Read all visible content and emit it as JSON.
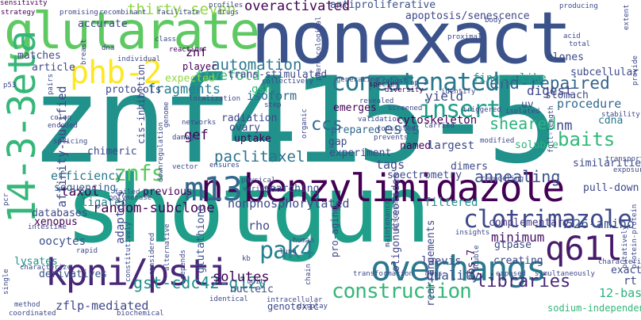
{
  "colors": {
    "background": "#ffffff",
    "palette": [
      "#440154",
      "#443983",
      "#31688e",
      "#21918c",
      "#35b779",
      "#90d743",
      "#fde725"
    ]
  },
  "words": [
    {
      "id": "w01",
      "text": "znf415-5",
      "color": "#21918c"
    },
    {
      "id": "w02",
      "text": "shotgun",
      "color": "#1f9e89"
    },
    {
      "id": "w03",
      "text": "nonexact",
      "color": "#3b528b"
    },
    {
      "id": "w04",
      "text": "glutarate",
      "color": "#5ec962"
    },
    {
      "id": "w05",
      "text": "n-benzylimidazole",
      "color": "#440154"
    },
    {
      "id": "w06",
      "text": "14-3-3eta",
      "color": "#35b779"
    },
    {
      "id": "w07",
      "text": "kpni/psti",
      "color": "#482677"
    },
    {
      "id": "w08",
      "text": "overhangs",
      "color": "#2a788e"
    },
    {
      "id": "w09",
      "text": "m13",
      "color": "#31688e"
    },
    {
      "id": "w10",
      "text": "phb-2",
      "color": "#fde725"
    },
    {
      "id": "w11",
      "text": "concatenated",
      "color": "#2a788e"
    },
    {
      "id": "w12",
      "text": "clotrimazole",
      "color": "#3e4989"
    },
    {
      "id": "w13",
      "text": "q61l",
      "color": "#481a6c"
    },
    {
      "id": "w14",
      "text": "insert",
      "color": "#1f9e89"
    },
    {
      "id": "w15",
      "text": "pak4",
      "color": "#26828e"
    },
    {
      "id": "w16",
      "text": "construction",
      "color": "#35b779"
    },
    {
      "id": "w17",
      "text": "znfs",
      "color": "#5ec962"
    },
    {
      "id": "w18",
      "text": "thirty-seven",
      "color": "#90d743"
    },
    {
      "id": "w19",
      "text": "end-repaired",
      "color": "#33638d"
    },
    {
      "id": "w20",
      "text": "sheared",
      "color": "#2db27d"
    },
    {
      "id": "w21",
      "text": "annealing",
      "color": "#3b528b"
    },
    {
      "id": "w22",
      "text": "overactivated",
      "color": "#440154"
    },
    {
      "id": "w23",
      "text": "automation",
      "color": "#2a788e"
    },
    {
      "id": "w24",
      "text": "random-subclone",
      "color": "#440154"
    },
    {
      "id": "w25",
      "text": "gst-cdc42-g12v",
      "color": "#21918c"
    },
    {
      "id": "w26",
      "text": "libraries",
      "color": "#482878"
    },
    {
      "id": "w27",
      "text": "nonphosphorylated",
      "color": "#3e4989"
    },
    {
      "id": "w28",
      "text": "paclitaxel",
      "color": "#2c728e"
    },
    {
      "id": "w29",
      "text": "baits",
      "color": "#35b779"
    },
    {
      "id": "w30",
      "text": "526-amino",
      "color": "#3b528b"
    },
    {
      "id": "w31",
      "text": "12-base",
      "color": "#2db27d"
    },
    {
      "id": "w32",
      "text": "affinity-purified",
      "color": "#3e4989"
    },
    {
      "id": "w33",
      "text": "antiproliferative",
      "color": "#3b528b"
    },
    {
      "id": "w34",
      "text": "apoptosis/senescence",
      "color": "#404688"
    },
    {
      "id": "w35",
      "text": "fivefold",
      "color": "#35b779"
    },
    {
      "id": "w36",
      "text": "fragments",
      "color": "#287c8e"
    },
    {
      "id": "w37",
      "text": "finger-like",
      "color": "#1f9e89"
    },
    {
      "id": "w38",
      "text": "ccs",
      "color": "#31688e"
    },
    {
      "id": "w39",
      "text": "yield",
      "color": "#3e4989"
    },
    {
      "id": "w40",
      "text": "digest",
      "color": "#404688"
    },
    {
      "id": "w41",
      "text": "efficiency",
      "color": "#2a788e"
    },
    {
      "id": "w42",
      "text": "solutes",
      "color": "#440154"
    },
    {
      "id": "w43",
      "text": "filtered",
      "color": "#21918c"
    },
    {
      "id": "w44",
      "text": "minimum",
      "color": "#471164"
    },
    {
      "id": "w45",
      "text": "complementary",
      "color": "#453882"
    },
    {
      "id": "w46",
      "text": "quality",
      "color": "#3b528b"
    },
    {
      "id": "w47",
      "text": "laevis",
      "color": "#3e4989"
    },
    {
      "id": "w48",
      "text": "cos-7",
      "color": "#471164"
    },
    {
      "id": "w49",
      "text": "rho",
      "color": "#3e4989"
    },
    {
      "id": "w50",
      "text": "taxol",
      "color": "#440154"
    },
    {
      "id": "w51",
      "text": "gef",
      "color": "#440154"
    },
    {
      "id": "w52",
      "text": "ests",
      "color": "#31688e"
    },
    {
      "id": "w53",
      "text": "sequencing",
      "color": "#34618d"
    },
    {
      "id": "w54",
      "text": "ligated",
      "color": "#2a788e"
    },
    {
      "id": "w55",
      "text": "cytoskeleton",
      "color": "#440154"
    },
    {
      "id": "w56",
      "text": "zflp-mediated",
      "color": "#404688"
    },
    {
      "id": "w57",
      "text": "tags",
      "color": "#3e4989"
    },
    {
      "id": "w58",
      "text": "oocytes",
      "color": "#3b528b"
    },
    {
      "id": "w59",
      "text": "lysates",
      "color": "#21918c"
    },
    {
      "id": "w60",
      "text": "derivatives",
      "color": "#3b528b"
    },
    {
      "id": "w61",
      "text": "adaptors",
      "color": "#3e4989"
    },
    {
      "id": "w62",
      "text": "xenopus",
      "color": "#440154"
    },
    {
      "id": "w63",
      "text": "oligonucleotides",
      "color": "#404688"
    },
    {
      "id": "w64",
      "text": "glutathione",
      "color": "#3b528b"
    },
    {
      "id": "w65",
      "text": "rearrangements",
      "color": "#3e4989"
    },
    {
      "id": "w66",
      "text": "gtpase",
      "color": "#3e4989"
    },
    {
      "id": "w67",
      "text": "largest",
      "color": "#3e4989"
    },
    {
      "id": "w68",
      "text": "soluble",
      "color": "#2db27d"
    },
    {
      "id": "w69",
      "text": "dimers",
      "color": "#3e4989"
    },
    {
      "id": "w70",
      "text": "procedure",
      "color": "#31688e"
    },
    {
      "id": "w71",
      "text": "stomach",
      "color": "#3e4989"
    },
    {
      "id": "w72",
      "text": "nm",
      "color": "#3e4989"
    },
    {
      "id": "w73",
      "text": "cdna",
      "color": "#2a788e"
    },
    {
      "id": "w74",
      "text": "uv",
      "color": "#3e4989"
    },
    {
      "id": "w75",
      "text": "clones",
      "color": "#3e4989"
    },
    {
      "id": "w76",
      "text": "accurate",
      "color": "#3e4989"
    },
    {
      "id": "w77",
      "text": "matches",
      "color": "#3e4989"
    },
    {
      "id": "w78",
      "text": "znf",
      "color": "#440154"
    },
    {
      "id": "w79",
      "text": "article",
      "color": "#3e4989"
    },
    {
      "id": "w80",
      "text": "protocols",
      "color": "#3e4989"
    },
    {
      "id": "w81",
      "text": "expected",
      "color": "#90d743"
    },
    {
      "id": "w82",
      "text": "player",
      "color": "#440154"
    },
    {
      "id": "w83",
      "text": "isoform",
      "color": "#31688e"
    },
    {
      "id": "w84",
      "text": "gsh",
      "color": "#35b779"
    },
    {
      "id": "w85",
      "text": "trans-stimulated",
      "color": "#3e4989"
    },
    {
      "id": "w86",
      "text": "radiation",
      "color": "#3e4989"
    },
    {
      "id": "w87",
      "text": "ovary",
      "color": "#3e4989"
    },
    {
      "id": "w88",
      "text": "uptake",
      "color": "#440154"
    },
    {
      "id": "w89",
      "text": "chimeric",
      "color": "#3e4989"
    },
    {
      "id": "w90",
      "text": "previous",
      "color": "#440154"
    },
    {
      "id": "w91",
      "text": "searching",
      "color": "#3e4989"
    },
    {
      "id": "w92",
      "text": "spectrometry",
      "color": "#3e4989"
    },
    {
      "id": "w93",
      "text": "experiment",
      "color": "#3e4989"
    },
    {
      "id": "w94",
      "text": "prepared",
      "color": "#31688e"
    },
    {
      "id": "w95",
      "text": "gap",
      "color": "#3e4989"
    },
    {
      "id": "w96",
      "text": "named",
      "color": "#440154"
    },
    {
      "id": "w97",
      "text": "emerges",
      "color": "#440154"
    },
    {
      "id": "w98",
      "text": "subcellular",
      "color": "#3e4989"
    },
    {
      "id": "w99",
      "text": "pull-down",
      "color": "#3e4989"
    },
    {
      "id": "w100",
      "text": "sodium-independent",
      "color": "#35b779"
    },
    {
      "id": "w101",
      "text": "creating",
      "color": "#3e4989"
    },
    {
      "id": "w102",
      "text": "exact",
      "color": "#3e4989"
    },
    {
      "id": "w103",
      "text": "rt",
      "color": "#3e4989"
    },
    {
      "id": "w104",
      "text": "similarities",
      "color": "#3e4989"
    },
    {
      "id": "w105",
      "text": "sensitivity",
      "color": "#440154"
    },
    {
      "id": "w106",
      "text": "strategy",
      "color": "#440154"
    },
    {
      "id": "w107",
      "text": "promising",
      "color": "#3e4989"
    },
    {
      "id": "w108",
      "text": "recombinant",
      "color": "#3e4989"
    },
    {
      "id": "w109",
      "text": "facilitate",
      "color": "#3e4989"
    },
    {
      "id": "w110",
      "text": "drugs",
      "color": "#3e4989"
    },
    {
      "id": "w111",
      "text": "profiles",
      "color": "#3e4989"
    },
    {
      "id": "w112",
      "text": "producing",
      "color": "#3e4989"
    },
    {
      "id": "w113",
      "text": "class",
      "color": "#3e4989"
    },
    {
      "id": "w114",
      "text": "dna",
      "color": "#3e4989"
    },
    {
      "id": "w115",
      "text": "reaction",
      "color": "#440154"
    },
    {
      "id": "w116",
      "text": "individual",
      "color": "#3e4989"
    },
    {
      "id": "w117",
      "text": "pharmacological",
      "color": "#3e4989"
    },
    {
      "id": "w118",
      "text": "species",
      "color": "#440154"
    },
    {
      "id": "w119",
      "text": "diversity",
      "color": "#440154"
    },
    {
      "id": "w120",
      "text": "robust",
      "color": "#3e4989"
    },
    {
      "id": "w121",
      "text": "generating",
      "color": "#3e4989"
    },
    {
      "id": "w122",
      "text": "proximal",
      "color": "#3e4989"
    },
    {
      "id": "w123",
      "text": "body",
      "color": "#3e4989"
    },
    {
      "id": "w124",
      "text": "acid",
      "color": "#3e4989"
    },
    {
      "id": "w125",
      "text": "total",
      "color": "#3e4989"
    },
    {
      "id": "w126",
      "text": "collectively",
      "color": "#3e4989"
    },
    {
      "id": "w127",
      "text": "ap-1",
      "color": "#3e4989"
    },
    {
      "id": "w128",
      "text": "identify",
      "color": "#3e4989"
    },
    {
      "id": "w129",
      "text": "revealed",
      "color": "#3e4989"
    },
    {
      "id": "w130",
      "text": "screened",
      "color": "#3e4989"
    },
    {
      "id": "w131",
      "text": "triggered",
      "color": "#3e4989"
    },
    {
      "id": "w132",
      "text": "isolated",
      "color": "#3e4989"
    },
    {
      "id": "w133",
      "text": "localization",
      "color": "#3e4989"
    },
    {
      "id": "w134",
      "text": "step",
      "color": "#3e4989"
    },
    {
      "id": "w135",
      "text": "validation",
      "color": "#3e4989"
    },
    {
      "id": "w136",
      "text": "carried",
      "color": "#3e4989"
    },
    {
      "id": "w137",
      "text": "stability",
      "color": "#3e4989"
    },
    {
      "id": "w138",
      "text": "consisted",
      "color": "#3e4989"
    },
    {
      "id": "w139",
      "text": "prevents",
      "color": "#3e4989"
    },
    {
      "id": "w140",
      "text": "modified",
      "color": "#3e4989"
    },
    {
      "id": "w141",
      "text": "transport",
      "color": "#3e4989"
    },
    {
      "id": "w142",
      "text": "exposure",
      "color": "#3e4989"
    },
    {
      "id": "w143",
      "text": "networks",
      "color": "#3e4989"
    },
    {
      "id": "w144",
      "text": "damage",
      "color": "#3e4989"
    },
    {
      "id": "w145",
      "text": "vector",
      "color": "#3e4989"
    },
    {
      "id": "w146",
      "text": "ensures",
      "color": "#3e4989"
    },
    {
      "id": "w147",
      "text": "physical",
      "color": "#3e4989"
    },
    {
      "id": "w148",
      "text": "variants",
      "color": "#3e4989"
    },
    {
      "id": "w149",
      "text": "remodeling",
      "color": "#3e4989"
    },
    {
      "id": "w150",
      "text": "human",
      "color": "#3e4989"
    },
    {
      "id": "w151",
      "text": "lung",
      "color": "#3e4989"
    },
    {
      "id": "w152",
      "text": "kb",
      "color": "#3e4989"
    },
    {
      "id": "w153",
      "text": "insights",
      "color": "#3e4989"
    },
    {
      "id": "w154",
      "text": "maintenance",
      "color": "#3e4989"
    },
    {
      "id": "w155",
      "text": "discovery",
      "color": "#3e4989"
    },
    {
      "id": "w156",
      "text": "pro-aging",
      "color": "#3e4989"
    },
    {
      "id": "w157",
      "text": "transformation",
      "color": "#3e4989"
    },
    {
      "id": "w158",
      "text": "mass",
      "color": "#3e4989"
    },
    {
      "id": "w159",
      "text": "exposed",
      "color": "#3e4989"
    },
    {
      "id": "w160",
      "text": "simultaneously",
      "color": "#3e4989"
    },
    {
      "id": "w161",
      "text": "characteristics",
      "color": "#3e4989"
    },
    {
      "id": "w162",
      "text": "putatively",
      "color": "#3e4989"
    },
    {
      "id": "w163",
      "text": "protein-protein",
      "color": "#3e4989"
    },
    {
      "id": "w164",
      "text": "nucleic",
      "color": "#3e4989"
    },
    {
      "id": "w165",
      "text": "unit",
      "color": "#3e4989"
    },
    {
      "id": "w166",
      "text": "intracellular",
      "color": "#3e4989"
    },
    {
      "id": "w167",
      "text": "display",
      "color": "#3e4989"
    },
    {
      "id": "w168",
      "text": "identical",
      "color": "#3e4989"
    },
    {
      "id": "w169",
      "text": "genotoxic",
      "color": "#3e4989"
    },
    {
      "id": "w170",
      "text": "biochemical",
      "color": "#3e4989"
    },
    {
      "id": "w171",
      "text": "coordinated",
      "color": "#3e4989"
    },
    {
      "id": "w172",
      "text": "method",
      "color": "#3e4989"
    },
    {
      "id": "w173",
      "text": "single",
      "color": "#3e4989"
    },
    {
      "id": "w174",
      "text": "characterize",
      "color": "#3e4989"
    },
    {
      "id": "w175",
      "text": "rapid",
      "color": "#3e4989"
    },
    {
      "id": "w176",
      "text": "intestine",
      "color": "#3e4989"
    },
    {
      "id": "w177",
      "text": "databases",
      "color": "#3e4989"
    },
    {
      "id": "w178",
      "text": "failed",
      "color": "#3e4989"
    },
    {
      "id": "w179",
      "text": "polymerase",
      "color": "#3e4989"
    },
    {
      "id": "w180",
      "text": "pcr",
      "color": "#3e4989"
    },
    {
      "id": "w181",
      "text": "splicing",
      "color": "#3e4989"
    },
    {
      "id": "w182",
      "text": "colon",
      "color": "#3e4989"
    },
    {
      "id": "w183",
      "text": "encoded",
      "color": "#3e4989"
    },
    {
      "id": "w184",
      "text": "pairs",
      "color": "#3e4989"
    },
    {
      "id": "w185",
      "text": "p53",
      "color": "#3e4989"
    },
    {
      "id": "w186",
      "text": "breast",
      "color": "#3e4989"
    },
    {
      "id": "w187",
      "text": "genome",
      "color": "#3e4989"
    },
    {
      "id": "w188",
      "text": "cis-inhibition",
      "color": "#3e4989"
    },
    {
      "id": "w189",
      "text": "downregulation",
      "color": "#3e4989"
    },
    {
      "id": "w190",
      "text": "organic",
      "color": "#3e4989"
    },
    {
      "id": "w191",
      "text": "full-length",
      "color": "#3e4989"
    },
    {
      "id": "w192",
      "text": "extent",
      "color": "#3e4989"
    },
    {
      "id": "w193",
      "text": "provide",
      "color": "#3e4989"
    },
    {
      "id": "w194",
      "text": "depends",
      "color": "#3e4989"
    },
    {
      "id": "w195",
      "text": "chain",
      "color": "#3e4989"
    },
    {
      "id": "w196",
      "text": "alternative",
      "color": "#3e4989"
    },
    {
      "id": "w197",
      "text": "considered",
      "color": "#3e4989"
    },
    {
      "id": "w198",
      "text": "constitutively",
      "color": "#3e4989"
    },
    {
      "id": "w199",
      "text": "double",
      "color": "#3e4989"
    }
  ]
}
